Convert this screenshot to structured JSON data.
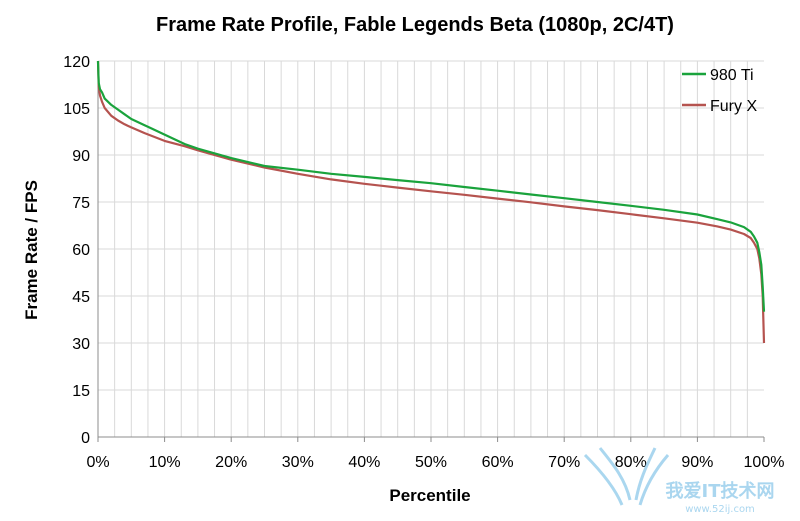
{
  "chart_data": {
    "type": "line",
    "title": "Frame Rate Profile, Fable Legends Beta (1080p, 2C/4T)",
    "xlabel": "Percentile",
    "ylabel": "Frame Rate / FPS",
    "xlim": [
      0,
      100
    ],
    "ylim": [
      0,
      120
    ],
    "x_ticks": [
      "0%",
      "10%",
      "20%",
      "30%",
      "40%",
      "50%",
      "60%",
      "70%",
      "80%",
      "90%",
      "100%"
    ],
    "y_ticks": [
      "0",
      "15",
      "30",
      "45",
      "60",
      "75",
      "90",
      "105",
      "120"
    ],
    "grid": true,
    "legend_position": "top-right",
    "x": [
      0,
      0.1,
      0.3,
      0.6,
      1,
      2,
      3,
      4,
      5,
      7,
      10,
      13,
      15,
      20,
      25,
      30,
      35,
      40,
      45,
      50,
      55,
      60,
      65,
      70,
      75,
      80,
      85,
      90,
      93,
      95,
      97,
      98,
      98.5,
      99,
      99.3,
      99.6,
      99.8,
      100
    ],
    "series": [
      {
        "name": "980 Ti",
        "color": "#1aa33c",
        "values": [
          120,
          113,
          111,
          110,
          108,
          106,
          104.5,
          103,
          101.5,
          99.5,
          96.5,
          93.5,
          92,
          89,
          86.5,
          85.3,
          84,
          83,
          82,
          81,
          79.8,
          78.6,
          77.4,
          76.2,
          75,
          73.8,
          72.5,
          71,
          69.5,
          68.5,
          67,
          65.5,
          64,
          62,
          59,
          55,
          48,
          40
        ]
      },
      {
        "name": "Fury X",
        "color": "#b5534f",
        "values": [
          120,
          112,
          109,
          107,
          105,
          102.5,
          101,
          99.8,
          98.8,
          97,
          94.5,
          92.8,
          91.5,
          88.5,
          86,
          84,
          82.2,
          80.8,
          79.6,
          78.4,
          77.3,
          76.1,
          74.9,
          73.6,
          72.4,
          71.1,
          69.8,
          68.4,
          67.2,
          66.2,
          64.8,
          63.5,
          62,
          60,
          57,
          52,
          45,
          30
        ]
      }
    ]
  },
  "watermark": {
    "text": "我爱IT技术网",
    "sub": "www.52ij.com"
  }
}
